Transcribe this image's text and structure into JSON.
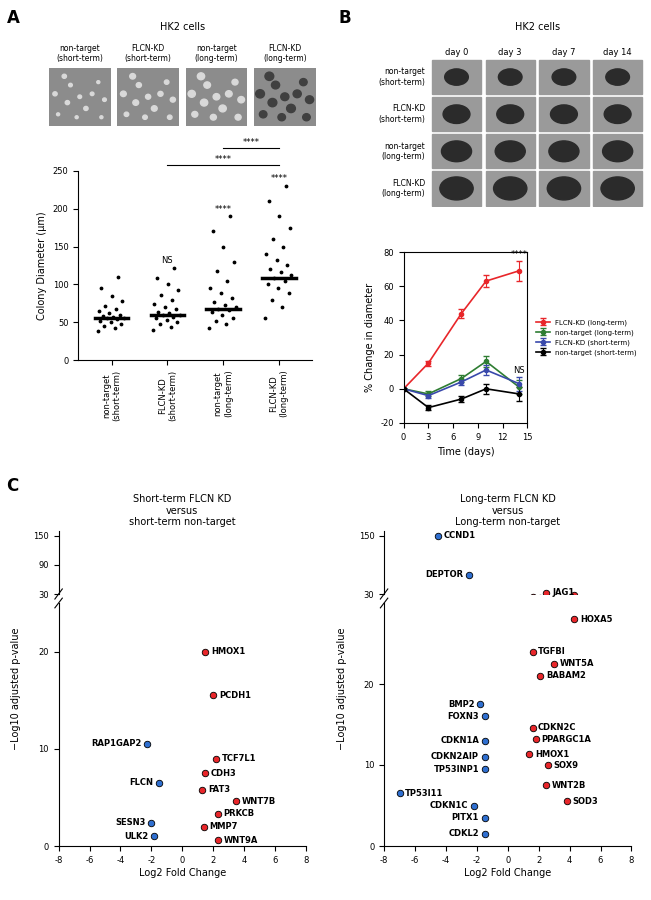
{
  "panel_labels": [
    "A",
    "B",
    "C"
  ],
  "image_panels": [
    {
      "title": "HK2 cells",
      "labels": [
        "non-target\n(short-term)",
        "FLCN-KD\n(short-term)",
        "non-target\n(long-term)",
        "FLCN-KD\n(long-term)"
      ]
    },
    {
      "title": "HK2 cells",
      "columns": [
        "day 0",
        "day 3",
        "day 7",
        "day 14"
      ],
      "rows": [
        "non-target\n(short-term)",
        "FLCN-KD\n(short-term)",
        "non-target\n(long-term)",
        "FLCN-KD\n(long-term)"
      ]
    }
  ],
  "chart_data": [
    {
      "type": "strip",
      "ylabel": "Colony Diameter (µm)",
      "color": "#000000",
      "categories": [
        "non-target\n(short-term)",
        "FLCN-KD\n(short-term)",
        "non-target\n(long-term)",
        "FLCN-KD\n(long-term)"
      ],
      "values": [
        56,
        59,
        68,
        109
      ],
      "points": [
        [
          38,
          42,
          45,
          48,
          50,
          52,
          54,
          55,
          56,
          57,
          58,
          60,
          62,
          65,
          68,
          72,
          78,
          85,
          95,
          110
        ],
        [
          40,
          44,
          47,
          50,
          53,
          55,
          57,
          59,
          60,
          62,
          64,
          67,
          70,
          74,
          80,
          86,
          92,
          100,
          108,
          122
        ],
        [
          42,
          48,
          52,
          56,
          60,
          63,
          66,
          68,
          70,
          73,
          77,
          82,
          88,
          95,
          105,
          118,
          130,
          150,
          170,
          190
        ],
        [
          55,
          70,
          80,
          88,
          95,
          100,
          105,
          109,
          112,
          116,
          120,
          126,
          132,
          140,
          150,
          160,
          175,
          190,
          210,
          230
        ]
      ],
      "group_labels": [
        null,
        "NS",
        "****",
        "****"
      ],
      "comparisons": [
        {
          "groups": [
            1,
            3
          ],
          "label": "****"
        },
        {
          "groups": [
            2,
            3
          ],
          "label": "****"
        }
      ],
      "ylim": [
        0,
        250
      ],
      "yticks": [
        0,
        50,
        100,
        150,
        200,
        250
      ]
    },
    {
      "type": "line",
      "xlabel": "Time (days)",
      "ylabel": "% Change in diameter",
      "x": [
        0,
        3,
        7,
        10,
        14
      ],
      "series": [
        {
          "name": "FLCN-KD (long-term)",
          "color": "#e8262a",
          "marker": "o",
          "values": [
            0,
            15,
            44,
            63,
            69
          ],
          "errors": [
            0,
            1.5,
            2.5,
            3.5,
            6
          ]
        },
        {
          "name": "non-target (long-term)",
          "color": "#2e7d32",
          "marker": "o",
          "values": [
            0,
            -3,
            6,
            16,
            1
          ],
          "errors": [
            0,
            1.5,
            2,
            3,
            4
          ]
        },
        {
          "name": "FLCN-KD (short-term)",
          "color": "#3949ab",
          "marker": "o",
          "values": [
            0,
            -4,
            4,
            11,
            3
          ],
          "errors": [
            0,
            1.5,
            2,
            3,
            4
          ]
        },
        {
          "name": "non-target (short-term)",
          "color": "#000000",
          "marker": "o",
          "values": [
            0,
            -11,
            -6,
            0,
            -3
          ],
          "errors": [
            0,
            1.5,
            2,
            3,
            4
          ]
        }
      ],
      "annotations": [
        {
          "x": 14,
          "y": 76,
          "text": "****"
        },
        {
          "x": 14,
          "y": 8,
          "text": "NS"
        }
      ],
      "xlim": [
        0,
        15
      ],
      "xticks": [
        0,
        3,
        6,
        9,
        12,
        15
      ],
      "ylim": [
        -20,
        80
      ],
      "yticks": [
        -20,
        0,
        20,
        40,
        60,
        80
      ],
      "legend": "right"
    },
    {
      "type": "volcano",
      "title": "Short-term FLCN KD\nversus\nshort-term non-target",
      "xlabel": "Log2 Fold Change",
      "ylabel": "−Log10 adjusted p-value",
      "xlim": [
        -8,
        8
      ],
      "xticks": [
        -8,
        -6,
        -4,
        -2,
        0,
        2,
        4,
        6,
        8
      ],
      "ylim": [
        [
          0,
          25
        ],
        [
          30,
          160
        ]
      ],
      "yticks": [
        [
          0,
          10,
          20
        ],
        [
          30,
          90,
          150
        ]
      ],
      "series": [
        {
          "color": "#e8262a",
          "points": [
            {
              "label": "HMOX1",
              "x": 1.5,
              "y": 20
            },
            {
              "label": "PCDH1",
              "x": 2.0,
              "y": 15.5
            },
            {
              "label": "TCF7L1",
              "x": 2.2,
              "y": 9
            },
            {
              "label": "CDH3",
              "x": 1.5,
              "y": 7.5
            },
            {
              "label": "FAT3",
              "x": 1.3,
              "y": 5.8
            },
            {
              "label": "WNT7B",
              "x": 3.5,
              "y": 4.6
            },
            {
              "label": "PRKCB",
              "x": 2.3,
              "y": 3.3
            },
            {
              "label": "MMP7",
              "x": 1.4,
              "y": 2.0
            },
            {
              "label": "WNT9A",
              "x": 2.3,
              "y": 0.6
            }
          ]
        },
        {
          "color": "#2f6fd0",
          "points": [
            {
              "label": "RAP1GAP2",
              "x": -2.3,
              "y": 10.5
            },
            {
              "label": "FLCN",
              "x": -1.5,
              "y": 6.5
            },
            {
              "label": "SESN3",
              "x": -2.0,
              "y": 2.4
            },
            {
              "label": "ULK2",
              "x": -1.8,
              "y": 1.0
            }
          ]
        }
      ]
    },
    {
      "type": "volcano",
      "title": "Long-term FLCN KD\nversus\nLong-term non-target",
      "xlabel": "Log2 Fold Change",
      "ylabel": "−Log10 adjusted p-value",
      "xlim": [
        -8,
        8
      ],
      "xticks": [
        -8,
        -6,
        -4,
        -2,
        0,
        2,
        4,
        6,
        8
      ],
      "ylim": [
        [
          0,
          30
        ],
        [
          30,
          160
        ]
      ],
      "yticks": [
        [
          0,
          10,
          20
        ],
        [
          30,
          150
        ]
      ],
      "series": [
        {
          "color": "#e8262a",
          "points": [
            {
              "label": "JAG1",
              "x": 2.5,
              "y": 33
            },
            {
              "label": "HOXA5",
              "x": 4.3,
              "y": 28
            },
            {
              "label": "TGFBI",
              "x": 1.6,
              "y": 24
            },
            {
              "label": "WNT5A",
              "x": 3.0,
              "y": 22.5
            },
            {
              "label": "BABAM2",
              "x": 2.1,
              "y": 21
            },
            {
              "label": "CDKN2C",
              "x": 1.6,
              "y": 14.6
            },
            {
              "label": "PPARGC1A",
              "x": 1.8,
              "y": 13.2
            },
            {
              "label": "HMOX1",
              "x": 1.4,
              "y": 11.3
            },
            {
              "label": "SOX9",
              "x": 2.6,
              "y": 10
            },
            {
              "label": "WNT2B",
              "x": 2.5,
              "y": 7.5
            },
            {
              "label": "SOD3",
              "x": 3.8,
              "y": 5.5
            }
          ]
        },
        {
          "color": "#2f6fd0",
          "points": [
            {
              "label": "CCND1",
              "x": -4.5,
              "y": 150
            },
            {
              "label": "DEPTOR",
              "x": -2.5,
              "y": 70
            },
            {
              "label": "BMP2",
              "x": -1.8,
              "y": 17.5
            },
            {
              "label": "FOXN3",
              "x": -1.5,
              "y": 16
            },
            {
              "label": "CDKN1A",
              "x": -1.5,
              "y": 13
            },
            {
              "label": "CDKN2AIP",
              "x": -1.5,
              "y": 11
            },
            {
              "label": "TP53INP1",
              "x": -1.5,
              "y": 9.5
            },
            {
              "label": "TP53I11",
              "x": -7.0,
              "y": 6.5
            },
            {
              "label": "CDKN1C",
              "x": -2.2,
              "y": 5
            },
            {
              "label": "PITX1",
              "x": -1.5,
              "y": 3.5
            },
            {
              "label": "CDKL2",
              "x": -1.5,
              "y": 1.5
            }
          ]
        }
      ]
    }
  ]
}
